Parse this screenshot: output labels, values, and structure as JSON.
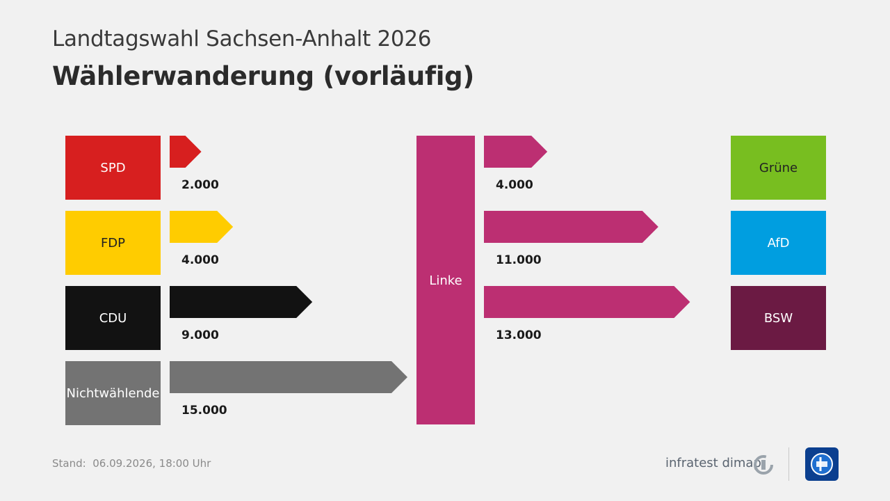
{
  "header": {
    "subtitle": "Landtagswahl Sachsen-Anhalt 2026",
    "title": "Wählerwanderung (vorläufig)"
  },
  "chart_data": {
    "type": "flow",
    "center": {
      "name": "Linke",
      "color": "#bc2f72"
    },
    "inflows": [
      {
        "from": "SPD",
        "value": 2000,
        "label": "2.000",
        "color": "#d71f1f",
        "text_color": "#ffffff"
      },
      {
        "from": "FDP",
        "value": 4000,
        "label": "4.000",
        "color": "#ffcc00",
        "text_color": "#222222"
      },
      {
        "from": "CDU",
        "value": 9000,
        "label": "9.000",
        "color": "#121212",
        "text_color": "#ffffff"
      },
      {
        "from": "Nichtwählende",
        "value": 15000,
        "label": "15.000",
        "color": "#737373",
        "text_color": "#ffffff"
      }
    ],
    "outflows": [
      {
        "to": "Grüne",
        "value": 4000,
        "label": "4.000",
        "color": "#78be20",
        "text_color": "#222222"
      },
      {
        "to": "AfD",
        "value": 11000,
        "label": "11.000",
        "color": "#009ee0",
        "text_color": "#ffffff"
      },
      {
        "to": "BSW",
        "value": 13000,
        "label": "13.000",
        "color": "#6b1a43",
        "text_color": "#ffffff"
      }
    ]
  },
  "footer": {
    "stand_label": "Stand:",
    "stand_value": "06.09.2026, 18:00 Uhr",
    "brand": "infratest dimap"
  },
  "colors": {
    "brand_mark": "#9aa3ab",
    "tv_logo_bg": "#0b3f8f"
  },
  "icons": {
    "brand_mark": "infratest-dimap-logo-icon",
    "tv_logo": "tagesschau-logo-icon"
  }
}
